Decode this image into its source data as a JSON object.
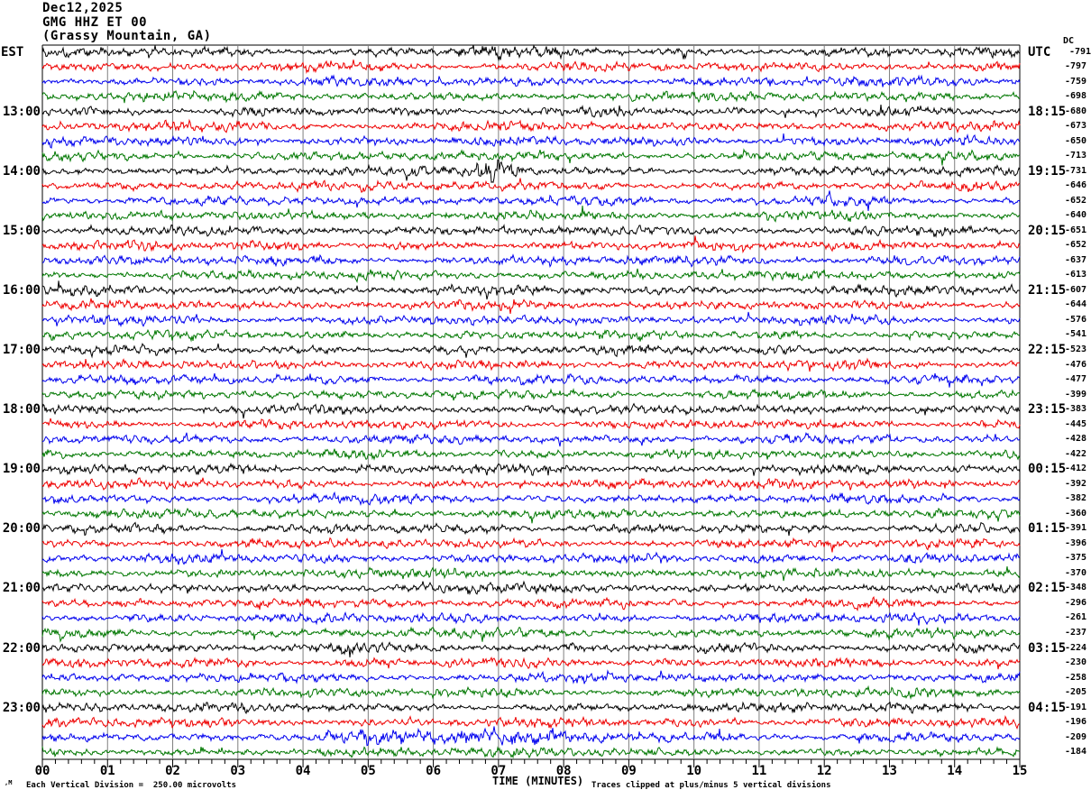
{
  "header": {
    "date": "Dec12,2025",
    "station": "GMG HHZ ET 00",
    "location": "(Grassy Mountain, GA)"
  },
  "axis": {
    "left_timezone": "EST",
    "right_timezone": "UTC",
    "dc_header": "DC",
    "x_axis_label": "TIME (MINUTES)",
    "x_ticks": [
      "00",
      "01",
      "02",
      "03",
      "04",
      "05",
      "06",
      "07",
      "08",
      "09",
      "10",
      "11",
      "12",
      "13",
      "14",
      "15"
    ]
  },
  "footer": {
    "corner_mark": ",M",
    "scale_note": "Each Vertical Division =  250.00 microvolts",
    "clip_note": "Traces clipped at plus/minus 5 vertical divisions"
  },
  "colors": {
    "background": "#ffffff",
    "trace_cycle": [
      "#000000",
      "#ee0000",
      "#0000ee",
      "#007700"
    ],
    "grid": "#7f7f7f",
    "border": "#000000"
  },
  "chart_data": {
    "type": "line",
    "subtype": "seismogram-helicorder",
    "x_label": "TIME (MINUTES)",
    "x_range_minutes": [
      0,
      15
    ],
    "minutes_per_line": 15,
    "traces_per_hour_group": 4,
    "trace_color_order": [
      "black",
      "red",
      "blue",
      "green"
    ],
    "vertical_division_microvolts": 250.0,
    "clip_divisions": 5,
    "hour_groups": [
      {
        "est": "EST",
        "utc": "UTC",
        "dc": [
          -791,
          -797,
          -759,
          -698
        ]
      },
      {
        "est": "13:00",
        "utc": "18:15",
        "dc": [
          -680,
          -673,
          -650,
          -713
        ]
      },
      {
        "est": "14:00",
        "utc": "19:15",
        "dc": [
          -731,
          -646,
          -652,
          -640
        ]
      },
      {
        "est": "15:00",
        "utc": "20:15",
        "dc": [
          -651,
          -652,
          -637,
          -613
        ]
      },
      {
        "est": "16:00",
        "utc": "21:15",
        "dc": [
          -607,
          -644,
          -576,
          -541
        ]
      },
      {
        "est": "17:00",
        "utc": "22:15",
        "dc": [
          -523,
          -476,
          -477,
          -399
        ]
      },
      {
        "est": "18:00",
        "utc": "23:15",
        "dc": [
          -383,
          -445,
          -428,
          -422
        ]
      },
      {
        "est": "19:00",
        "utc": "00:15",
        "dc": [
          -412,
          -392,
          -382,
          -360
        ]
      },
      {
        "est": "20:00",
        "utc": "01:15",
        "dc": [
          -391,
          -396,
          -375,
          -370
        ]
      },
      {
        "est": "21:00",
        "utc": "02:15",
        "dc": [
          -348,
          -296,
          -261,
          -237
        ]
      },
      {
        "est": "22:00",
        "utc": "03:15",
        "dc": [
          -224,
          -230,
          -258,
          -205
        ]
      },
      {
        "est": "23:00",
        "utc": "04:15",
        "dc": [
          -191,
          -196,
          -209,
          -184
        ]
      }
    ],
    "events": [
      {
        "row": 8,
        "trace": "14:00 EST / 19:15 UTC black",
        "start_min": 6.4,
        "peak_min": 6.85,
        "end_min": 7.5,
        "amplitude_multiplier": 4.0,
        "description": "high-amplitude clipped burst"
      },
      {
        "row": 46,
        "trace": "23:00 EST / 04:15 UTC blue",
        "start_min": 3.9,
        "peak_min": 6.5,
        "end_min": 9.7,
        "amplitude_multiplier": 2.1,
        "description": "sustained elevated amplitude"
      },
      {
        "row": 0,
        "trace": "first black trace",
        "start_min": 6.1,
        "peak_min": 6.7,
        "end_min": 7.4,
        "amplitude_multiplier": 1.6,
        "description": "minor elevated amplitude"
      }
    ]
  }
}
